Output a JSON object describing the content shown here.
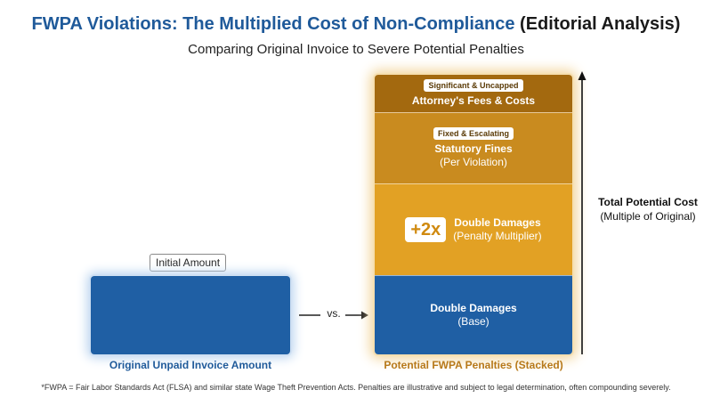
{
  "title": {
    "main": "FWPA Violations: The Multiplied Cost of Non-Compliance",
    "tag": "(Editorial Analysis)"
  },
  "subtitle": "Comparing Original Invoice to Severe Potential Penalties",
  "colors": {
    "original": "#1f5fa4",
    "base": "#1f5fa4",
    "double_damages": "#e2a124",
    "statutory_fines": "#c98b1f",
    "attorney_fees": "#a3690f",
    "original_caption": "#1f5a9a",
    "penalty_caption": "#b7791a"
  },
  "chart_data": {
    "type": "bar",
    "title": "FWPA Violations: The Multiplied Cost of Non-Compliance (Editorial Analysis)",
    "subtitle": "Comparing Original Invoice to Severe Potential Penalties",
    "categories": [
      "Original Unpaid Invoice Amount",
      "Potential FWPA Penalties (Stacked)"
    ],
    "original_bar": {
      "category": "Original Unpaid Invoice Amount",
      "label": "Initial Amount",
      "value": 1
    },
    "stacked_bar": {
      "category": "Potential FWPA Penalties (Stacked)",
      "segments": [
        {
          "name": "Double Damages",
          "sub": "(Base)",
          "tag": "",
          "multiplier": "",
          "value": 1,
          "color": "#1f5fa4"
        },
        {
          "name": "Double Damages",
          "sub": "(Penalty Multiplier)",
          "tag": "",
          "multiplier": "+2x",
          "value": 1.15,
          "color": "#e2a124"
        },
        {
          "name": "Statutory Fines",
          "sub": "(Per Violation)",
          "tag": "Fixed & Escalating",
          "multiplier": "",
          "value": 0.9,
          "color": "#c98b1f"
        },
        {
          "name": "Attorney's Fees & Costs",
          "sub": "",
          "tag": "Significant & Uncapped",
          "multiplier": "",
          "value": 0.47,
          "color": "#a3690f"
        }
      ]
    },
    "comparison_label": "vs.",
    "axis_label_bold": "Total Potential Cost",
    "axis_label_sub": "(Multiple of Original)"
  },
  "footnote": "*FWPA = Fair Labor Standards Act (FLSA) and similar state Wage Theft Prevention Acts. Penalties are illustrative and subject to legal determination, often compounding severely."
}
